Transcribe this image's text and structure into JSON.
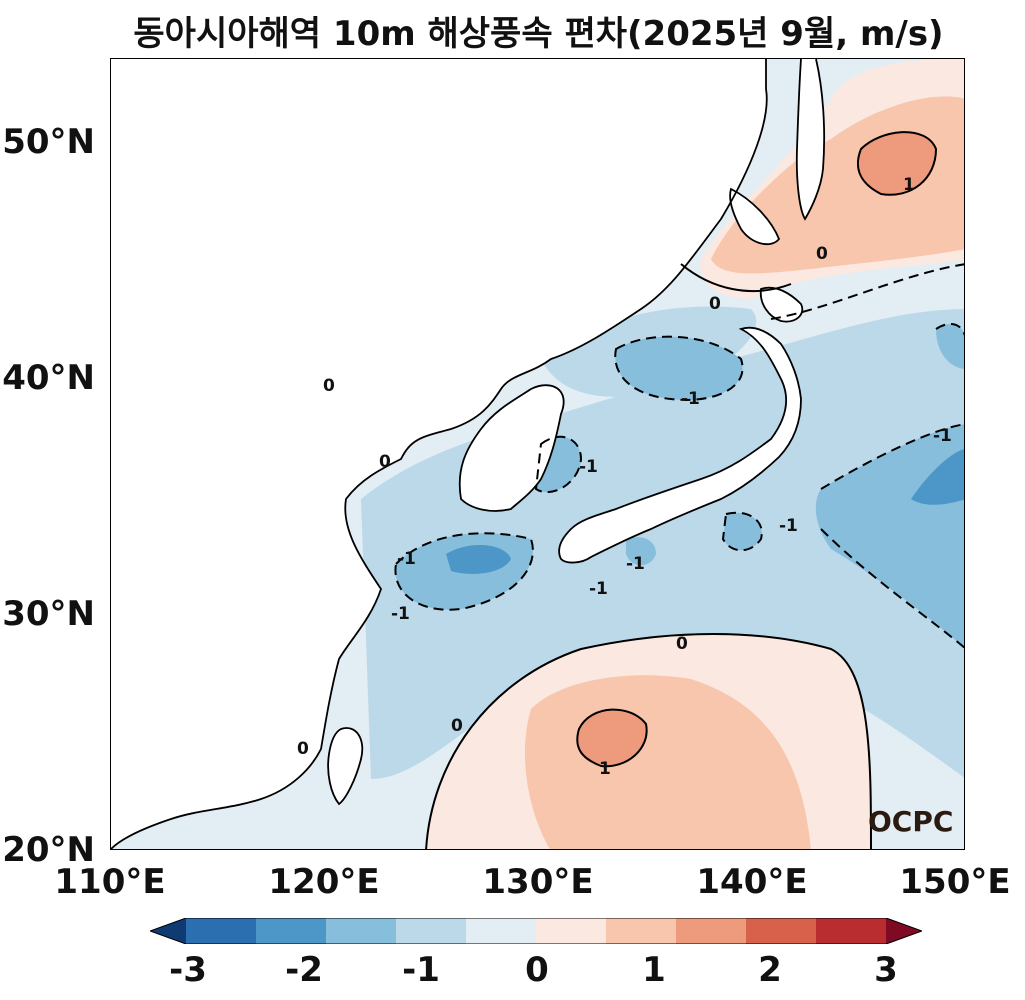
{
  "title": "동아시아해역 10m 해상풍속 편차(2025년 9월, m/s)",
  "map": {
    "region": "East Asia seas",
    "lon_range": [
      110,
      150
    ],
    "lat_range": [
      20,
      53.5
    ],
    "x_ticks": [
      "110°E",
      "120°E",
      "130°E",
      "140°E",
      "150°E"
    ],
    "y_ticks": [
      "20°N",
      "30°N",
      "40°N",
      "50°N"
    ],
    "contour_labels": [
      "0",
      "-1",
      "1"
    ],
    "watermark": "OCPC"
  },
  "colorbar": {
    "ticks": [
      "-3",
      "-2",
      "-1",
      "0",
      "1",
      "2",
      "3"
    ],
    "colors": [
      "#0f3a72",
      "#2b6fb0",
      "#4c97c8",
      "#87bedc",
      "#bcd9ea",
      "#e2edf4",
      "#fbe9e1",
      "#f7c6ad",
      "#ee9a7c",
      "#d8614c",
      "#b92c30",
      "#7e0a24"
    ],
    "extend": "both"
  }
}
